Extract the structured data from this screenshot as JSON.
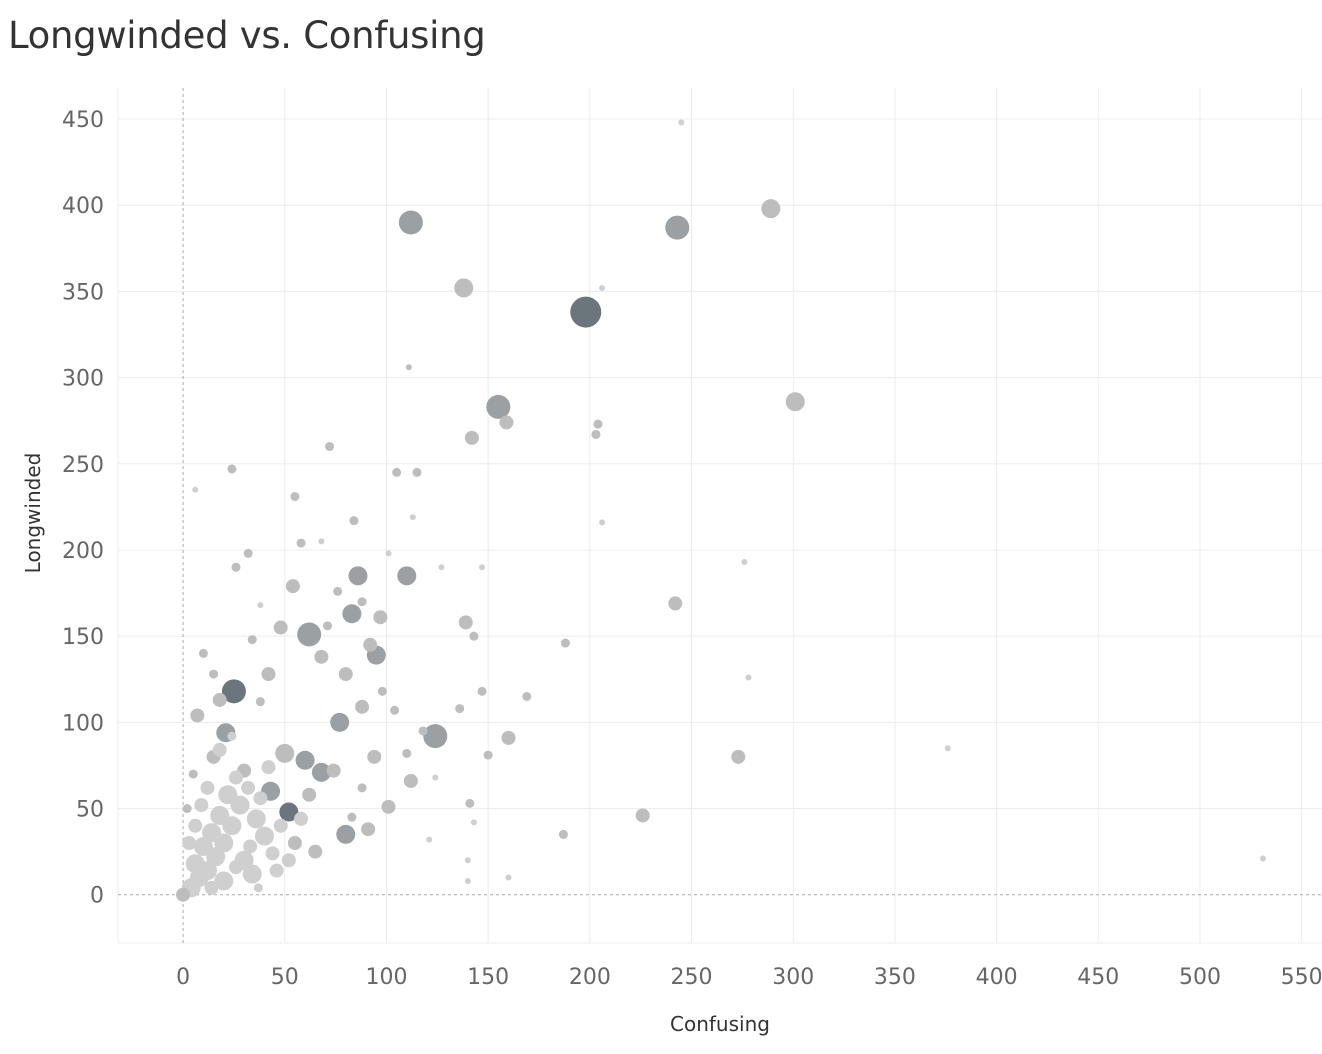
{
  "chart_data": {
    "type": "scatter",
    "title": "Longwinded vs. Confusing",
    "xlabel": "Confusing",
    "ylabel": "Longwinded",
    "xlim": [
      -32,
      560
    ],
    "ylim": [
      -28,
      468
    ],
    "x_ticks": [
      0,
      50,
      100,
      150,
      200,
      250,
      300,
      350,
      400,
      450,
      500,
      550
    ],
    "y_ticks": [
      0,
      50,
      100,
      150,
      200,
      250,
      300,
      350,
      400,
      450
    ],
    "grid": true,
    "zero_lines": "dashed",
    "legend": "none",
    "colors": {
      "dark": "#6b757c",
      "mid": "#9aa0a3",
      "light": "#bdbdbd",
      "lighter": "#cfcfcf",
      "grid": "#ececec",
      "zero_line": "#aaaaaa"
    },
    "points": [
      {
        "x": 198,
        "y": 338,
        "size": 5,
        "shade": "dark"
      },
      {
        "x": 112,
        "y": 390,
        "size": 4,
        "shade": "mid"
      },
      {
        "x": 243,
        "y": 387,
        "size": 4,
        "shade": "mid"
      },
      {
        "x": 155,
        "y": 283,
        "size": 4,
        "shade": "mid"
      },
      {
        "x": 25,
        "y": 118,
        "size": 4,
        "shade": "dark"
      },
      {
        "x": 124,
        "y": 92,
        "size": 4,
        "shade": "mid"
      },
      {
        "x": 62,
        "y": 151,
        "size": 4,
        "shade": "mid"
      },
      {
        "x": 289,
        "y": 398,
        "size": 3,
        "shade": "light"
      },
      {
        "x": 301,
        "y": 286,
        "size": 3,
        "shade": "light"
      },
      {
        "x": 138,
        "y": 352,
        "size": 3,
        "shade": "light"
      },
      {
        "x": 142,
        "y": 265,
        "size": 2,
        "shade": "light"
      },
      {
        "x": 159,
        "y": 274,
        "size": 2,
        "shade": "light"
      },
      {
        "x": 110,
        "y": 185,
        "size": 3,
        "shade": "mid"
      },
      {
        "x": 86,
        "y": 185,
        "size": 3,
        "shade": "mid"
      },
      {
        "x": 83,
        "y": 163,
        "size": 3,
        "shade": "mid"
      },
      {
        "x": 95,
        "y": 139,
        "size": 3,
        "shade": "mid"
      },
      {
        "x": 77,
        "y": 100,
        "size": 3,
        "shade": "mid"
      },
      {
        "x": 68,
        "y": 71,
        "size": 3,
        "shade": "mid"
      },
      {
        "x": 80,
        "y": 35,
        "size": 3,
        "shade": "mid"
      },
      {
        "x": 52,
        "y": 48,
        "size": 3,
        "shade": "dark"
      },
      {
        "x": 21,
        "y": 94,
        "size": 3,
        "shade": "mid"
      },
      {
        "x": 43,
        "y": 60,
        "size": 3,
        "shade": "mid"
      },
      {
        "x": 50,
        "y": 82,
        "size": 3,
        "shade": "light"
      },
      {
        "x": 60,
        "y": 78,
        "size": 3,
        "shade": "mid"
      },
      {
        "x": 242,
        "y": 169,
        "size": 2,
        "shade": "light"
      },
      {
        "x": 273,
        "y": 80,
        "size": 2,
        "shade": "light"
      },
      {
        "x": 226,
        "y": 46,
        "size": 2,
        "shade": "light"
      },
      {
        "x": 160,
        "y": 91,
        "size": 2,
        "shade": "light"
      },
      {
        "x": 139,
        "y": 158,
        "size": 2,
        "shade": "light"
      },
      {
        "x": 188,
        "y": 146,
        "size": 1,
        "shade": "light"
      },
      {
        "x": 187,
        "y": 35,
        "size": 1,
        "shade": "light"
      },
      {
        "x": 147,
        "y": 118,
        "size": 1,
        "shade": "light"
      },
      {
        "x": 136,
        "y": 108,
        "size": 1,
        "shade": "light"
      },
      {
        "x": 169,
        "y": 115,
        "size": 1,
        "shade": "light"
      },
      {
        "x": 105,
        "y": 245,
        "size": 1,
        "shade": "light"
      },
      {
        "x": 115,
        "y": 245,
        "size": 1,
        "shade": "light"
      },
      {
        "x": 72,
        "y": 260,
        "size": 1,
        "shade": "light"
      },
      {
        "x": 24,
        "y": 247,
        "size": 1,
        "shade": "light"
      },
      {
        "x": 55,
        "y": 231,
        "size": 1,
        "shade": "light"
      },
      {
        "x": 203,
        "y": 267,
        "size": 1,
        "shade": "light"
      },
      {
        "x": 204,
        "y": 273,
        "size": 1,
        "shade": "light"
      },
      {
        "x": 111,
        "y": 306,
        "size": 0,
        "shade": "light"
      },
      {
        "x": 245,
        "y": 448,
        "size": 0,
        "shade": "lighter"
      },
      {
        "x": 206,
        "y": 352,
        "size": 0,
        "shade": "lighter"
      },
      {
        "x": 206,
        "y": 216,
        "size": 0,
        "shade": "lighter"
      },
      {
        "x": 276,
        "y": 193,
        "size": 0,
        "shade": "lighter"
      },
      {
        "x": 278,
        "y": 126,
        "size": 0,
        "shade": "lighter"
      },
      {
        "x": 376,
        "y": 85,
        "size": 0,
        "shade": "lighter"
      },
      {
        "x": 531,
        "y": 21,
        "size": 0,
        "shade": "lighter"
      },
      {
        "x": 6,
        "y": 235,
        "size": 0,
        "shade": "lighter"
      },
      {
        "x": 113,
        "y": 219,
        "size": 0,
        "shade": "lighter"
      },
      {
        "x": 84,
        "y": 217,
        "size": 1,
        "shade": "light"
      },
      {
        "x": 58,
        "y": 204,
        "size": 1,
        "shade": "light"
      },
      {
        "x": 68,
        "y": 205,
        "size": 0,
        "shade": "lighter"
      },
      {
        "x": 101,
        "y": 198,
        "size": 0,
        "shade": "lighter"
      },
      {
        "x": 143,
        "y": 150,
        "size": 1,
        "shade": "light"
      },
      {
        "x": 97,
        "y": 161,
        "size": 2,
        "shade": "light"
      },
      {
        "x": 54,
        "y": 179,
        "size": 2,
        "shade": "light"
      },
      {
        "x": 150,
        "y": 81,
        "size": 1,
        "shade": "light"
      },
      {
        "x": 101,
        "y": 51,
        "size": 2,
        "shade": "light"
      },
      {
        "x": 141,
        "y": 53,
        "size": 1,
        "shade": "light"
      },
      {
        "x": 140,
        "y": 20,
        "size": 0,
        "shade": "lighter"
      },
      {
        "x": 140,
        "y": 8,
        "size": 0,
        "shade": "lighter"
      },
      {
        "x": 160,
        "y": 10,
        "size": 0,
        "shade": "lighter"
      },
      {
        "x": 143,
        "y": 42,
        "size": 0,
        "shade": "lighter"
      },
      {
        "x": 121,
        "y": 32,
        "size": 0,
        "shade": "lighter"
      },
      {
        "x": 112,
        "y": 66,
        "size": 2,
        "shade": "light"
      },
      {
        "x": 94,
        "y": 80,
        "size": 2,
        "shade": "light"
      },
      {
        "x": 88,
        "y": 109,
        "size": 2,
        "shade": "light"
      },
      {
        "x": 80,
        "y": 128,
        "size": 2,
        "shade": "light"
      },
      {
        "x": 92,
        "y": 145,
        "size": 2,
        "shade": "light"
      },
      {
        "x": 68,
        "y": 138,
        "size": 2,
        "shade": "light"
      },
      {
        "x": 42,
        "y": 128,
        "size": 2,
        "shade": "light"
      },
      {
        "x": 34,
        "y": 148,
        "size": 1,
        "shade": "light"
      },
      {
        "x": 38,
        "y": 112,
        "size": 1,
        "shade": "light"
      },
      {
        "x": 18,
        "y": 113,
        "size": 2,
        "shade": "light"
      },
      {
        "x": 15,
        "y": 80,
        "size": 2,
        "shade": "light"
      },
      {
        "x": 30,
        "y": 72,
        "size": 2,
        "shade": "light"
      },
      {
        "x": 74,
        "y": 72,
        "size": 2,
        "shade": "light"
      },
      {
        "x": 62,
        "y": 58,
        "size": 2,
        "shade": "light"
      },
      {
        "x": 55,
        "y": 30,
        "size": 2,
        "shade": "light"
      },
      {
        "x": 65,
        "y": 25,
        "size": 2,
        "shade": "light"
      },
      {
        "x": 91,
        "y": 38,
        "size": 2,
        "shade": "light"
      },
      {
        "x": 83,
        "y": 45,
        "size": 1,
        "shade": "light"
      },
      {
        "x": 88,
        "y": 62,
        "size": 1,
        "shade": "light"
      },
      {
        "x": 110,
        "y": 82,
        "size": 1,
        "shade": "light"
      },
      {
        "x": 104,
        "y": 107,
        "size": 1,
        "shade": "light"
      },
      {
        "x": 98,
        "y": 118,
        "size": 1,
        "shade": "light"
      },
      {
        "x": 118,
        "y": 95,
        "size": 1,
        "shade": "light"
      },
      {
        "x": 124,
        "y": 68,
        "size": 0,
        "shade": "lighter"
      },
      {
        "x": 147,
        "y": 190,
        "size": 0,
        "shade": "lighter"
      },
      {
        "x": 127,
        "y": 190,
        "size": 0,
        "shade": "lighter"
      },
      {
        "x": 76,
        "y": 176,
        "size": 1,
        "shade": "light"
      },
      {
        "x": 88,
        "y": 170,
        "size": 1,
        "shade": "light"
      },
      {
        "x": 71,
        "y": 156,
        "size": 1,
        "shade": "light"
      },
      {
        "x": 48,
        "y": 155,
        "size": 2,
        "shade": "light"
      },
      {
        "x": 38,
        "y": 168,
        "size": 0,
        "shade": "lighter"
      },
      {
        "x": 32,
        "y": 198,
        "size": 1,
        "shade": "light"
      },
      {
        "x": 26,
        "y": 190,
        "size": 1,
        "shade": "light"
      },
      {
        "x": 10,
        "y": 140,
        "size": 1,
        "shade": "light"
      },
      {
        "x": 15,
        "y": 128,
        "size": 1,
        "shade": "light"
      },
      {
        "x": 7,
        "y": 104,
        "size": 2,
        "shade": "light"
      },
      {
        "x": 5,
        "y": 70,
        "size": 1,
        "shade": "light"
      },
      {
        "x": 2,
        "y": 50,
        "size": 1,
        "shade": "light"
      },
      {
        "x": 0,
        "y": 0,
        "size": 2,
        "shade": "light"
      },
      {
        "x": 4,
        "y": 4,
        "size": 3,
        "shade": "lighter"
      },
      {
        "x": 8,
        "y": 10,
        "size": 3,
        "shade": "lighter"
      },
      {
        "x": 12,
        "y": 14,
        "size": 3,
        "shade": "lighter"
      },
      {
        "x": 6,
        "y": 18,
        "size": 3,
        "shade": "lighter"
      },
      {
        "x": 16,
        "y": 22,
        "size": 3,
        "shade": "lighter"
      },
      {
        "x": 10,
        "y": 28,
        "size": 3,
        "shade": "lighter"
      },
      {
        "x": 20,
        "y": 30,
        "size": 3,
        "shade": "lighter"
      },
      {
        "x": 14,
        "y": 36,
        "size": 3,
        "shade": "lighter"
      },
      {
        "x": 24,
        "y": 40,
        "size": 3,
        "shade": "lighter"
      },
      {
        "x": 18,
        "y": 46,
        "size": 3,
        "shade": "lighter"
      },
      {
        "x": 28,
        "y": 52,
        "size": 3,
        "shade": "lighter"
      },
      {
        "x": 22,
        "y": 58,
        "size": 3,
        "shade": "lighter"
      },
      {
        "x": 32,
        "y": 62,
        "size": 2,
        "shade": "lighter"
      },
      {
        "x": 26,
        "y": 68,
        "size": 2,
        "shade": "lighter"
      },
      {
        "x": 36,
        "y": 44,
        "size": 3,
        "shade": "lighter"
      },
      {
        "x": 40,
        "y": 34,
        "size": 3,
        "shade": "lighter"
      },
      {
        "x": 30,
        "y": 20,
        "size": 3,
        "shade": "lighter"
      },
      {
        "x": 34,
        "y": 12,
        "size": 3,
        "shade": "lighter"
      },
      {
        "x": 44,
        "y": 24,
        "size": 2,
        "shade": "lighter"
      },
      {
        "x": 46,
        "y": 14,
        "size": 2,
        "shade": "lighter"
      },
      {
        "x": 6,
        "y": 40,
        "size": 2,
        "shade": "lighter"
      },
      {
        "x": 3,
        "y": 30,
        "size": 2,
        "shade": "lighter"
      },
      {
        "x": 20,
        "y": 8,
        "size": 3,
        "shade": "lighter"
      },
      {
        "x": 26,
        "y": 16,
        "size": 2,
        "shade": "lighter"
      },
      {
        "x": 38,
        "y": 56,
        "size": 2,
        "shade": "lighter"
      },
      {
        "x": 42,
        "y": 74,
        "size": 2,
        "shade": "lighter"
      },
      {
        "x": 12,
        "y": 62,
        "size": 2,
        "shade": "lighter"
      },
      {
        "x": 18,
        "y": 84,
        "size": 2,
        "shade": "lighter"
      },
      {
        "x": 24,
        "y": 92,
        "size": 1,
        "shade": "lighter"
      },
      {
        "x": 48,
        "y": 40,
        "size": 2,
        "shade": "lighter"
      },
      {
        "x": 52,
        "y": 20,
        "size": 2,
        "shade": "lighter"
      },
      {
        "x": 58,
        "y": 44,
        "size": 2,
        "shade": "lighter"
      },
      {
        "x": 9,
        "y": 52,
        "size": 2,
        "shade": "lighter"
      },
      {
        "x": 14,
        "y": 4,
        "size": 2,
        "shade": "lighter"
      },
      {
        "x": 33,
        "y": 28,
        "size": 2,
        "shade": "lighter"
      },
      {
        "x": 37,
        "y": 4,
        "size": 1,
        "shade": "lighter"
      }
    ]
  }
}
